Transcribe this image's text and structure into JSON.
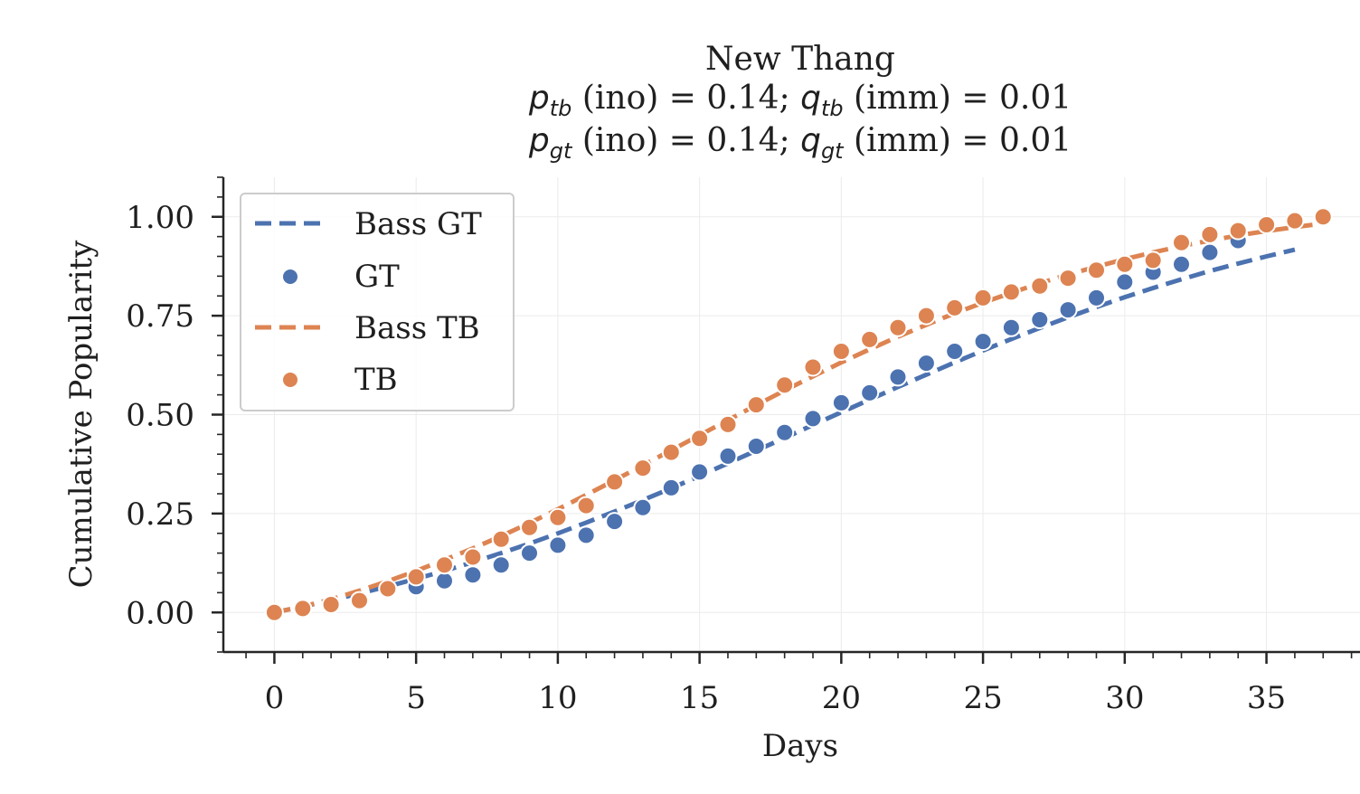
{
  "colors": {
    "gt": "#4c72b0",
    "tb": "#dd8452",
    "axis": "#262626",
    "grid": "#ebebeb"
  },
  "title": {
    "line1": "New Thang",
    "line2": {
      "p_sym": "p",
      "p_sub": "tb",
      "p_text": " (ino) = 0.14; ",
      "q_sym": "q",
      "q_sub": "tb",
      "q_text": " (imm) = 0.01"
    },
    "line3": {
      "p_sym": "p",
      "p_sub": "gt",
      "p_text": " (ino) = 0.14; ",
      "q_sym": "q",
      "q_sub": "gt",
      "q_text": " (imm) = 0.01"
    }
  },
  "chart_data": {
    "type": "line",
    "title": "New Thang | p_tb (ino) = 0.14; q_tb (imm) = 0.01 | p_gt (ino) = 0.14; q_gt (imm) = 0.01",
    "xlabel": "Days",
    "ylabel": "Cumulative Popularity",
    "xlim": [
      -1.8,
      38.3
    ],
    "ylim": [
      -0.1,
      1.1
    ],
    "xticks": [
      0,
      5,
      10,
      15,
      20,
      25,
      30,
      35
    ],
    "xtick_labels": [
      "0",
      "5",
      "10",
      "15",
      "20",
      "25",
      "30",
      "35"
    ],
    "yticks": [
      0.0,
      0.25,
      0.5,
      0.75,
      1.0
    ],
    "ytick_labels": [
      "0.00",
      "0.25",
      "0.50",
      "0.75",
      "1.00"
    ],
    "grid": true,
    "legend_position": "upper-left",
    "series": [
      {
        "name": "Bass GT",
        "kind": "line",
        "style": "dashed",
        "color": "#4c72b0",
        "x": [
          0,
          1,
          2,
          3,
          4,
          5,
          6,
          7,
          8,
          9,
          10,
          11,
          12,
          13,
          14,
          15,
          16,
          17,
          18,
          19,
          20,
          21,
          22,
          23,
          24,
          25,
          26,
          27,
          28,
          29,
          30,
          31,
          32,
          33,
          34,
          35,
          36
        ],
        "y": [
          0.0,
          0.015,
          0.031,
          0.048,
          0.066,
          0.085,
          0.105,
          0.127,
          0.15,
          0.174,
          0.2,
          0.227,
          0.255,
          0.284,
          0.314,
          0.345,
          0.377,
          0.409,
          0.441,
          0.474,
          0.506,
          0.538,
          0.57,
          0.601,
          0.632,
          0.662,
          0.691,
          0.719,
          0.746,
          0.772,
          0.797,
          0.82,
          0.842,
          0.863,
          0.882,
          0.9,
          0.917
        ]
      },
      {
        "name": "GT",
        "kind": "scatter",
        "color": "#4c72b0",
        "x": [
          0,
          1,
          2,
          3,
          4,
          5,
          6,
          7,
          8,
          9,
          10,
          11,
          12,
          13,
          14,
          15,
          16,
          17,
          18,
          19,
          20,
          21,
          22,
          23,
          24,
          25,
          26,
          27,
          28,
          29,
          30,
          31,
          32,
          33,
          34
        ],
        "y": [
          0.0,
          0.01,
          0.02,
          0.03,
          0.06,
          0.065,
          0.08,
          0.095,
          0.12,
          0.15,
          0.17,
          0.195,
          0.23,
          0.265,
          0.315,
          0.355,
          0.395,
          0.42,
          0.455,
          0.49,
          0.53,
          0.555,
          0.595,
          0.63,
          0.66,
          0.685,
          0.72,
          0.74,
          0.765,
          0.795,
          0.835,
          0.86,
          0.88,
          0.91,
          0.94
        ]
      },
      {
        "name": "Bass TB",
        "kind": "line",
        "style": "dashed",
        "color": "#dd8452",
        "x": [
          0,
          1,
          2,
          3,
          4,
          5,
          6,
          7,
          8,
          9,
          10,
          11,
          12,
          13,
          14,
          15,
          16,
          17,
          18,
          19,
          20,
          21,
          22,
          23,
          24,
          25,
          26,
          27,
          28,
          29,
          30,
          31,
          32,
          33,
          34,
          35,
          36,
          37
        ],
        "y": [
          0.0,
          0.015,
          0.033,
          0.055,
          0.079,
          0.105,
          0.133,
          0.162,
          0.193,
          0.226,
          0.261,
          0.297,
          0.334,
          0.372,
          0.41,
          0.448,
          0.486,
          0.524,
          0.561,
          0.597,
          0.632,
          0.665,
          0.697,
          0.727,
          0.756,
          0.783,
          0.808,
          0.832,
          0.854,
          0.874,
          0.893,
          0.91,
          0.926,
          0.94,
          0.953,
          0.964,
          0.974,
          0.983
        ]
      },
      {
        "name": "TB",
        "kind": "scatter",
        "color": "#dd8452",
        "x": [
          0,
          1,
          2,
          3,
          4,
          5,
          6,
          7,
          8,
          9,
          10,
          11,
          12,
          13,
          14,
          15,
          16,
          17,
          18,
          19,
          20,
          21,
          22,
          23,
          24,
          25,
          26,
          27,
          28,
          29,
          30,
          31,
          32,
          33,
          34,
          35,
          36,
          37
        ],
        "y": [
          0.0,
          0.01,
          0.02,
          0.03,
          0.06,
          0.09,
          0.12,
          0.14,
          0.185,
          0.215,
          0.24,
          0.27,
          0.33,
          0.365,
          0.405,
          0.44,
          0.475,
          0.525,
          0.575,
          0.62,
          0.66,
          0.69,
          0.72,
          0.75,
          0.77,
          0.795,
          0.81,
          0.825,
          0.845,
          0.865,
          0.88,
          0.89,
          0.935,
          0.955,
          0.965,
          0.98,
          0.99,
          1.0
        ]
      }
    ]
  }
}
